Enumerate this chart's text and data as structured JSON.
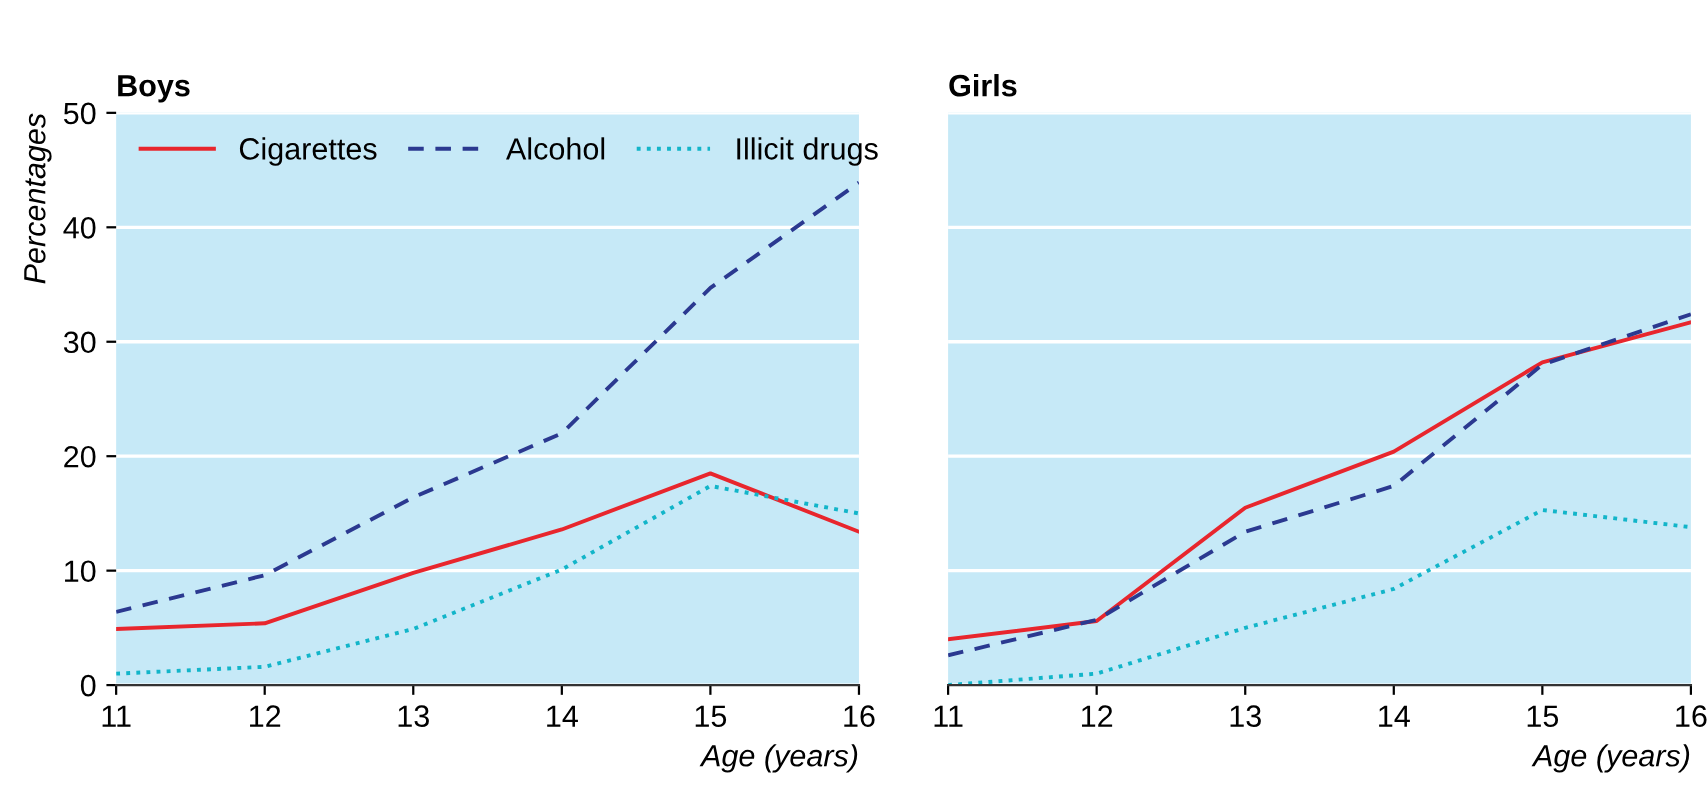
{
  "chart_data": [
    {
      "type": "line",
      "title": "Boys",
      "xlabel": "Age (years)",
      "ylabel": "Percentages",
      "x": [
        11,
        12,
        13,
        14,
        15,
        16
      ],
      "xlim": [
        11,
        16
      ],
      "xticks": [
        11,
        12,
        13,
        14,
        15,
        16
      ],
      "ylim": [
        0,
        50
      ],
      "yticks": [
        0,
        10,
        20,
        30,
        40,
        50
      ],
      "grid": "y",
      "legend": "top left",
      "series": [
        {
          "name": "Cigarettes",
          "color": "#e8262d",
          "line_style": "solid",
          "values": [
            4.9,
            5.4,
            9.8,
            13.6,
            18.5,
            13.4
          ]
        },
        {
          "name": "Alcohol",
          "color": "#2b3990",
          "line_style": "dashed",
          "values": [
            6.4,
            9.6,
            16.4,
            22,
            34.7,
            43.9
          ]
        },
        {
          "name": "Illicit drugs",
          "color": "#12b5c9",
          "line_style": "dotted",
          "values": [
            1,
            1.6,
            4.9,
            10.1,
            17.4,
            15
          ]
        }
      ]
    },
    {
      "type": "line",
      "title": "Girls",
      "xlabel": "Age (years)",
      "x": [
        11,
        12,
        13,
        14,
        15,
        16
      ],
      "xlim": [
        11,
        16
      ],
      "xticks": [
        11,
        12,
        13,
        14,
        15,
        16
      ],
      "ylim": [
        0,
        50
      ],
      "yticks": [
        0,
        10,
        20,
        30,
        40,
        50
      ],
      "grid": "y",
      "tick_labels": "x",
      "series": [
        {
          "color": "#e8262d",
          "line_style": "solid",
          "values": [
            4,
            5.6,
            15.5,
            20.4,
            28.2,
            31.7
          ]
        },
        {
          "color": "#2b3990",
          "line_style": "dashed",
          "values": [
            2.6,
            5.7,
            13.4,
            17.4,
            28,
            32.4
          ]
        },
        {
          "color": "#12b5c9",
          "line_style": "dotted",
          "values": [
            0,
            1,
            5,
            8.4,
            15.3,
            13.8
          ]
        }
      ]
    }
  ]
}
